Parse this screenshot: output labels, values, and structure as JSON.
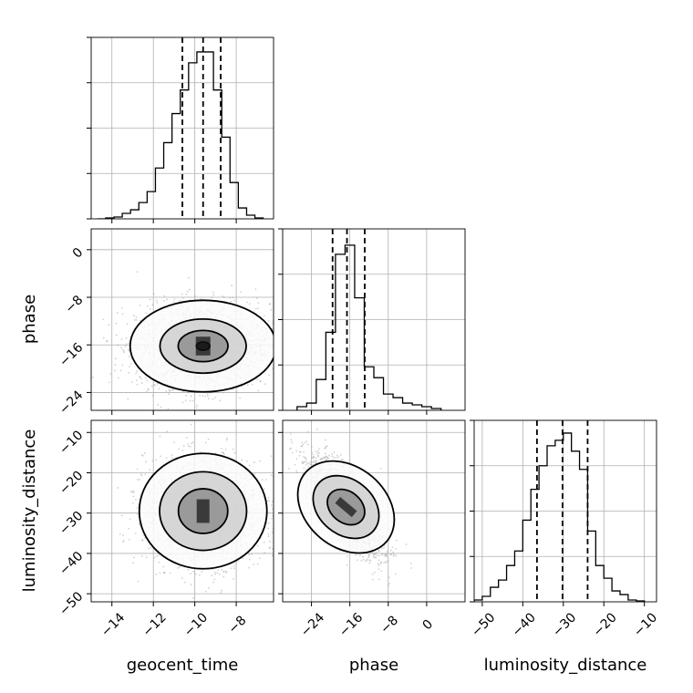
{
  "figure": {
    "xlabels": [
      "geocent_time",
      "phase",
      "luminosity_distance"
    ],
    "ylabels": [
      "",
      "phase",
      "luminosity_distance"
    ]
  },
  "chart_data": [
    {
      "type": "histogram",
      "panel": "geocent_time-marginal",
      "xlim": [
        -15,
        -6.2
      ],
      "xticks": [
        -14,
        -12,
        -10,
        -8
      ],
      "ylim": [
        0,
        1
      ],
      "bins": [
        [
          -14.5,
          0.0
        ],
        [
          -14.1,
          0.005
        ],
        [
          -13.7,
          0.01
        ],
        [
          -13.3,
          0.03
        ],
        [
          -12.9,
          0.05
        ],
        [
          -12.5,
          0.09
        ],
        [
          -12.1,
          0.15
        ],
        [
          -11.7,
          0.28
        ],
        [
          -11.3,
          0.42
        ],
        [
          -10.9,
          0.58
        ],
        [
          -10.5,
          0.71
        ],
        [
          -10.1,
          0.86
        ],
        [
          -9.7,
          0.92
        ],
        [
          -9.3,
          0.92
        ],
        [
          -8.9,
          0.71
        ],
        [
          -8.5,
          0.45
        ],
        [
          -8.1,
          0.2
        ],
        [
          -7.7,
          0.06
        ],
        [
          -7.3,
          0.02
        ],
        [
          -6.9,
          0.005
        ]
      ],
      "quantile_lines": [
        -10.6,
        -9.6,
        -8.75
      ],
      "grid": true
    },
    {
      "type": "histogram",
      "panel": "phase-marginal",
      "xlim": [
        -30,
        8
      ],
      "xticks": [
        -24,
        -16,
        -8,
        0
      ],
      "ylim": [
        0,
        1
      ],
      "bins": [
        [
          -26,
          0.02
        ],
        [
          -24,
          0.04
        ],
        [
          -22,
          0.17
        ],
        [
          -20,
          0.43
        ],
        [
          -18,
          0.86
        ],
        [
          -16,
          0.91
        ],
        [
          -14,
          0.62
        ],
        [
          -12,
          0.24
        ],
        [
          -10,
          0.18
        ],
        [
          -8,
          0.09
        ],
        [
          -6,
          0.07
        ],
        [
          -4,
          0.04
        ],
        [
          -2,
          0.03
        ],
        [
          0,
          0.02
        ],
        [
          2,
          0.01
        ]
      ],
      "quantile_lines": [
        -19.6,
        -16.6,
        -12.9
      ],
      "grid": true
    },
    {
      "type": "histogram",
      "panel": "luminosity_distance-marginal",
      "xlim": [
        -52,
        -7
      ],
      "xticks": [
        -50,
        -40,
        -30,
        -20,
        -10
      ],
      "ylim": [
        0,
        1
      ],
      "bins": [
        [
          -51,
          0.01
        ],
        [
          -49,
          0.03
        ],
        [
          -47,
          0.08
        ],
        [
          -45,
          0.12
        ],
        [
          -43,
          0.2
        ],
        [
          -41,
          0.28
        ],
        [
          -39,
          0.45
        ],
        [
          -37,
          0.62
        ],
        [
          -35,
          0.75
        ],
        [
          -33,
          0.86
        ],
        [
          -31,
          0.89
        ],
        [
          -29,
          0.93
        ],
        [
          -27,
          0.83
        ],
        [
          -25,
          0.73
        ],
        [
          -23,
          0.39
        ],
        [
          -21,
          0.2
        ],
        [
          -19,
          0.13
        ],
        [
          -17,
          0.06
        ],
        [
          -15,
          0.04
        ],
        [
          -13,
          0.01
        ],
        [
          -11,
          0.005
        ]
      ],
      "quantile_lines": [
        -36.5,
        -30.2,
        -24
      ],
      "grid": true
    },
    {
      "type": "scatter-density",
      "panel": "geocent_time-vs-phase",
      "x": "geocent_time",
      "y": "phase",
      "xlim": [
        -15,
        -6.2
      ],
      "ylim": [
        -27,
        3.5
      ],
      "yticks": [
        -24,
        -16,
        -8,
        0
      ],
      "center": [
        -9.6,
        -16.2
      ],
      "sigma": [
        1.6,
        3.5
      ],
      "contour_levels": [
        {
          "rx": 2.2,
          "ry": 2.2
        },
        {
          "rx": 1.3,
          "ry": 1.3
        },
        {
          "rx": 0.75,
          "ry": 0.75
        },
        {
          "rx": 0.2,
          "ry": 0.2
        }
      ],
      "grid": true
    },
    {
      "type": "scatter-density",
      "panel": "geocent_time-vs-luminosity_distance",
      "x": "geocent_time",
      "y": "luminosity_distance",
      "xlim": [
        -15,
        -6.2
      ],
      "ylim": [
        -52,
        -7
      ],
      "yticks": [
        -50,
        -40,
        -30,
        -20,
        -10
      ],
      "center": [
        -9.6,
        -29.5
      ],
      "sigma": [
        1.4,
        6.5
      ],
      "contour_levels": [
        {
          "rx": 2.2,
          "ry": 2.2
        },
        {
          "rx": 1.5,
          "ry": 1.5
        },
        {
          "rx": 0.85,
          "ry": 0.85
        }
      ],
      "grid": true
    },
    {
      "type": "scatter-density",
      "panel": "phase-vs-luminosity_distance",
      "x": "phase",
      "y": "luminosity_distance",
      "xlim": [
        -30,
        8
      ],
      "ylim": [
        -52,
        -7
      ],
      "center": [
        -16.8,
        -28.5
      ],
      "sigma": [
        3.8,
        6.0
      ],
      "correlation": -0.72,
      "contour_levels": [
        {
          "rx": 2.2,
          "ry": 2.2
        },
        {
          "rx": 1.5,
          "ry": 1.5
        },
        {
          "rx": 0.85,
          "ry": 0.85
        }
      ],
      "grid": true
    }
  ]
}
